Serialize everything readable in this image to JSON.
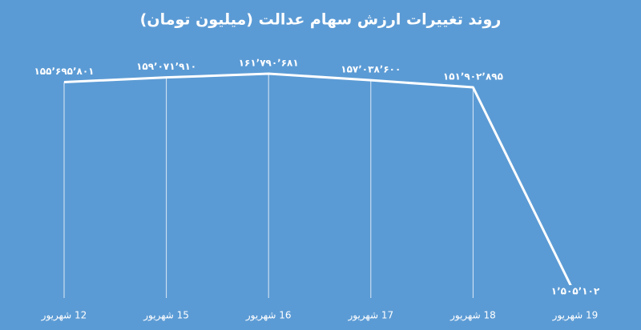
{
  "chart_data": {
    "type": "line",
    "title": "روند تغییرات ارزش سهام عدالت (میلیون تومان)",
    "categories": [
      "12 شهریور",
      "15 شهریور",
      "16 شهریور",
      "17 شهریور",
      "18 شهریور",
      "19 شهریور"
    ],
    "values": [
      155695801,
      159071910,
      161790681,
      157038600,
      151902895,
      1505102
    ],
    "value_labels": [
      "۱۵۵٬۶۹۵٬۸۰۱",
      "۱۵۹٬۰۷۱٬۹۱۰",
      "۱۶۱٬۷۹۰٬۶۸۱",
      "۱۵۷٬۰۳۸٬۶۰۰",
      "۱۵۱٬۹۰۲٬۸۹۵",
      "۱٬۵۰۵٬۱۰۲"
    ],
    "color": "#ffffff"
  }
}
